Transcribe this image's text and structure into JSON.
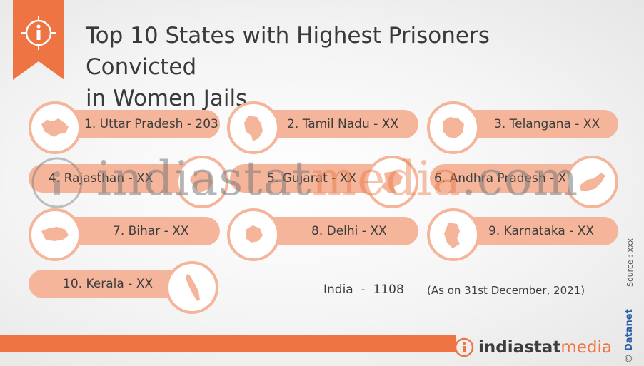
{
  "title": "Top 10 States with Highest Prisoners Convicted in Women Jails",
  "title_line1": "Top 10 States with Highest Prisoners Convicted",
  "title_line2": "in Women Jails",
  "icon": "info-icon",
  "accent_color": "#ee7443",
  "pill_color": "#f5b59a",
  "states": [
    {
      "rank": "1.",
      "name": "Uttar Pradesh",
      "value": "203",
      "label": "1. Uttar Pradesh - ",
      "icon": "uttar-pradesh-map-icon"
    },
    {
      "rank": "2.",
      "name": "Tamil Nadu",
      "value": "XX",
      "label": "2. Tamil Nadu - ",
      "icon": "tamil-nadu-map-icon"
    },
    {
      "rank": "3.",
      "name": "Telangana",
      "value": "XX",
      "label": "3. Telangana - ",
      "icon": "telangana-map-icon"
    },
    {
      "rank": "4.",
      "name": "Rajasthan",
      "value": "XX",
      "label": "4. Rajasthan - ",
      "icon": "rajasthan-map-icon"
    },
    {
      "rank": "5.",
      "name": "Gujarat",
      "value": "XX",
      "label": "5. Gujarat - ",
      "icon": "gujarat-map-icon"
    },
    {
      "rank": "6.",
      "name": "Andhra Pradesh",
      "value": "XX",
      "label": "6. Andhra Pradesh - ",
      "icon": "andhra-pradesh-map-icon"
    },
    {
      "rank": "7.",
      "name": "Bihar",
      "value": "XX",
      "label": "7. Bihar - ",
      "icon": "bihar-map-icon"
    },
    {
      "rank": "8.",
      "name": "Delhi",
      "value": "XX",
      "label": "8. Delhi - ",
      "icon": "delhi-map-icon"
    },
    {
      "rank": "9.",
      "name": "Karnataka",
      "value": "XX",
      "label": "9. Karnataka - ",
      "icon": "karnataka-map-icon"
    },
    {
      "rank": "10.",
      "name": "Kerala",
      "value": "XX",
      "label": "10. Kerala - ",
      "icon": "kerala-map-icon"
    }
  ],
  "total": {
    "label": "India",
    "separator": "-",
    "value": "1108"
  },
  "date_note": "(As on 31st December, 2021)",
  "watermark": {
    "part1": "indiastat",
    "part2": "media",
    "part3": ".com"
  },
  "logo": {
    "part1": "indiastat",
    "part2": "media"
  },
  "side": {
    "source": "Source : xxx",
    "brand": "Datanet",
    "copyright": "©"
  }
}
